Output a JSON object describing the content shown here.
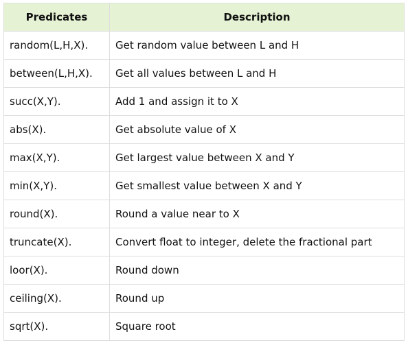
{
  "table": {
    "headers": [
      "Predicates",
      "Description"
    ],
    "rows": [
      [
        "random(L,H,X).",
        "Get random value between L and H"
      ],
      [
        "between(L,H,X).",
        "Get all values between L and H"
      ],
      [
        "succ(X,Y).",
        "Add 1 and assign it to X"
      ],
      [
        "abs(X).",
        "Get absolute value of X"
      ],
      [
        "max(X,Y).",
        "Get largest value between X and Y"
      ],
      [
        "min(X,Y).",
        "Get smallest value between X and Y"
      ],
      [
        "round(X).",
        "Round a value near to X"
      ],
      [
        "truncate(X).",
        "Convert float to integer, delete the fractional part"
      ],
      [
        "loor(X).",
        "Round down"
      ],
      [
        "ceiling(X).",
        "Round up"
      ],
      [
        "sqrt(X).",
        "Square root"
      ]
    ]
  },
  "colors": {
    "header_bg": "#e5f3d4",
    "border": "#dddddd",
    "text": "#111111"
  }
}
